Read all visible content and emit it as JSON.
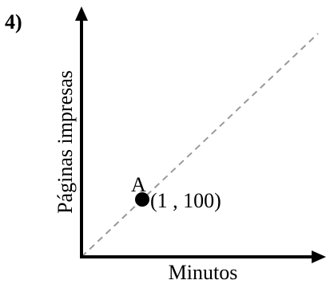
{
  "problem_number": "4)",
  "y_label": "Páginas impresas",
  "x_label": "Minutos",
  "point": {
    "name": "A",
    "label": "(1 , 100)"
  }
}
